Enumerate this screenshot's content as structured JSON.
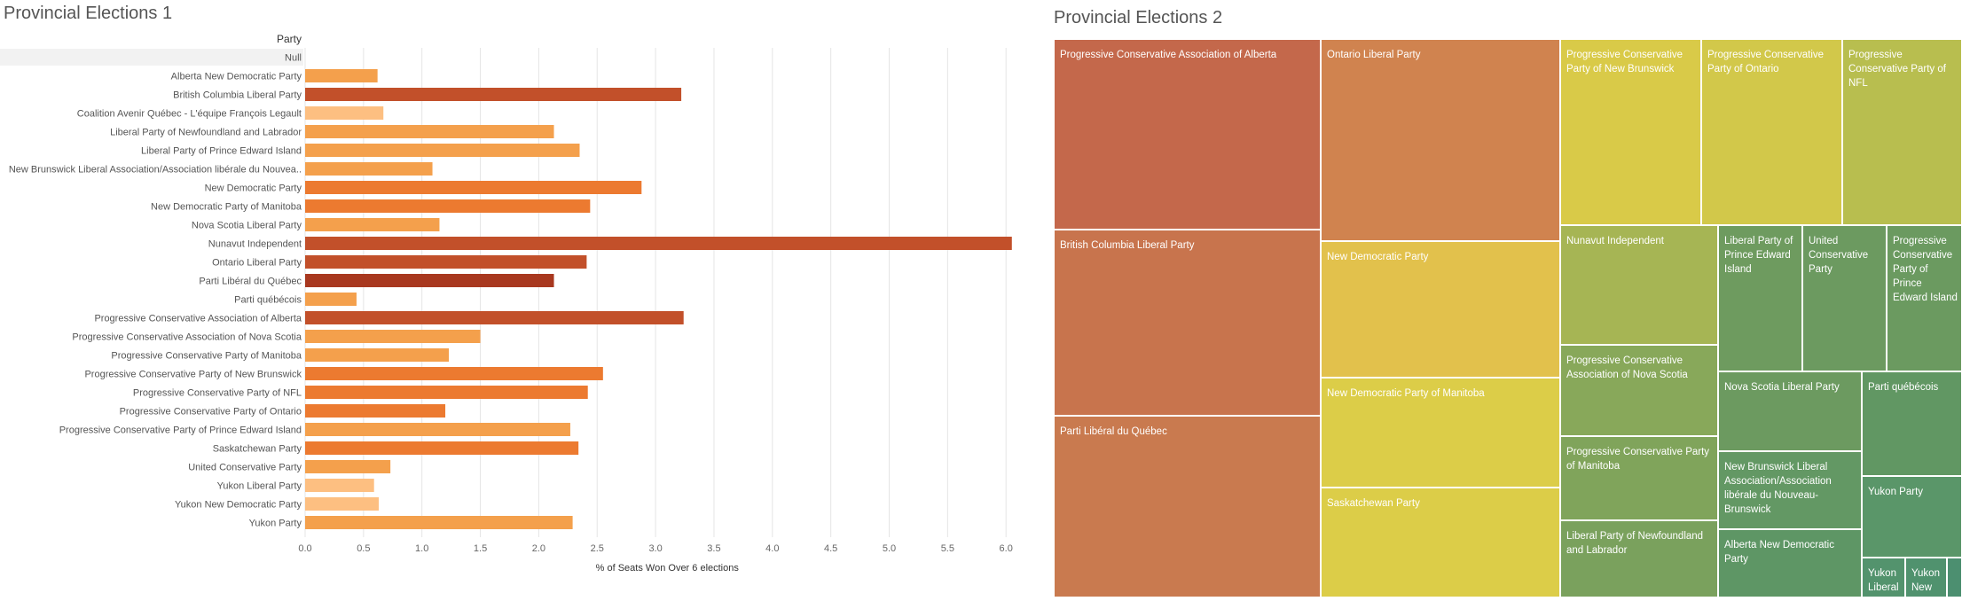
{
  "sheet1": {
    "title": "Provincial Elections 1"
  },
  "sheet2": {
    "title": "Provincial Elections 2"
  },
  "colors": {
    "bar_low": "#fdbf81",
    "bar_mid": "#f4a04c",
    "bar_orange": "#ec7a30",
    "bar_dark": "#c2502a",
    "bar_darkest": "#a8381f",
    "grid": "#e5e5e5",
    "null_row": "#f2f2f2"
  },
  "chart_data": [
    {
      "type": "bar",
      "orientation": "horizontal",
      "title": "Provincial Elections 1",
      "row_header": "Party",
      "xlabel": "% of Seats Won Over 6 elections",
      "xlim": [
        0,
        6.2
      ],
      "xticks": [
        "0.0",
        "0.5",
        "1.0",
        "1.5",
        "2.0",
        "2.5",
        "3.0",
        "3.5",
        "4.0",
        "4.5",
        "5.0",
        "5.5",
        "6.0"
      ],
      "categories": [
        "Null",
        "Alberta New Democratic Party",
        "British Columbia Liberal Party",
        "Coalition Avenir Québec - L'équipe François Legault",
        "Liberal Party of Newfoundland and Labrador",
        "Liberal Party of Prince Edward Island",
        "New Brunswick Liberal Association/Association libérale du Nouvea..",
        "New Democratic Party",
        "New Democratic Party of Manitoba",
        "Nova Scotia Liberal Party",
        "Nunavut Independent",
        "Ontario Liberal Party",
        "Parti Libéral du Québec",
        "Parti québécois",
        "Progressive Conservative Association of Alberta",
        "Progressive Conservative Association of Nova Scotia",
        "Progressive Conservative Party of Manitoba",
        "Progressive Conservative Party of New Brunswick",
        "Progressive Conservative Party of NFL",
        "Progressive Conservative Party of Ontario",
        "Progressive Conservative Party of Prince Edward Island",
        "Saskatchewan Party",
        "United Conservative Party",
        "Yukon Liberal Party",
        "Yukon New Democratic Party",
        "Yukon Party"
      ],
      "values": [
        null,
        0.62,
        3.22,
        0.67,
        2.13,
        2.35,
        1.09,
        2.88,
        2.44,
        1.15,
        6.05,
        2.41,
        2.13,
        0.44,
        3.24,
        1.5,
        1.23,
        2.55,
        2.42,
        1.2,
        2.27,
        2.34,
        0.73,
        0.59,
        0.63,
        2.29
      ],
      "color_group": [
        "",
        "mid",
        "dark",
        "low",
        "mid",
        "mid",
        "mid",
        "orange",
        "orange",
        "mid",
        "dark",
        "dark",
        "darkest",
        "mid",
        "dark",
        "mid",
        "mid",
        "orange",
        "orange",
        "orange",
        "mid",
        "orange",
        "mid",
        "low",
        "low",
        "mid"
      ]
    },
    {
      "type": "treemap",
      "title": "Provincial Elections 2",
      "cells": [
        {
          "label": "Progressive Conservative Association of Alberta",
          "color": "#c4684b"
        },
        {
          "label": "British Columbia Liberal Party",
          "color": "#c8744d"
        },
        {
          "label": "Parti Libéral du Québec",
          "color": "#c97a4f"
        },
        {
          "label": "Ontario Liberal Party",
          "color": "#d0834f"
        },
        {
          "label": "New Democratic Party",
          "color": "#e2c14c"
        },
        {
          "label": "New Democratic Party of Manitoba",
          "color": "#dccd48"
        },
        {
          "label": "Saskatchewan Party",
          "color": "#dccd48"
        },
        {
          "label": "Progressive Conservative Party of New Brunswick",
          "color": "#d9ca48"
        },
        {
          "label": "Progressive Conservative Party of Ontario",
          "color": "#d2c84a"
        },
        {
          "label": "Progressive Conservative Party of NFL",
          "color": "#b8be4f"
        },
        {
          "label": "Nunavut Independent",
          "color": "#a6b554"
        },
        {
          "label": "Progressive Conservative Association of Nova Scotia",
          "color": "#88a85a"
        },
        {
          "label": "Progressive Conservative Party of Manitoba",
          "color": "#80a45b"
        },
        {
          "label": "Liberal Party of Newfoundland and Labrador",
          "color": "#7aa15d"
        },
        {
          "label": "Liberal Party of Prince Edward Island",
          "color": "#6e9b5f"
        },
        {
          "label": "United Conservative Party",
          "color": "#6c9a60"
        },
        {
          "label": "Progressive Conservative Party of Prince Edward Island",
          "color": "#6b9a60"
        },
        {
          "label": "Nova Scotia Liberal Party",
          "color": "#6c9a60"
        },
        {
          "label": "Parti québécois",
          "color": "#619763"
        },
        {
          "label": "New Brunswick Liberal Association/Association libérale du Nouveau-Brunswick",
          "color": "#639864"
        },
        {
          "label": "Alberta New Democratic Party",
          "color": "#5e9665"
        },
        {
          "label": "Yukon Party",
          "color": "#5a9669"
        },
        {
          "label": "Yukon Liberal",
          "color": "#53936d"
        },
        {
          "label": "Yukon New",
          "color": "#50926e"
        },
        {
          "label": "",
          "color": "#4c8f70"
        }
      ]
    }
  ]
}
